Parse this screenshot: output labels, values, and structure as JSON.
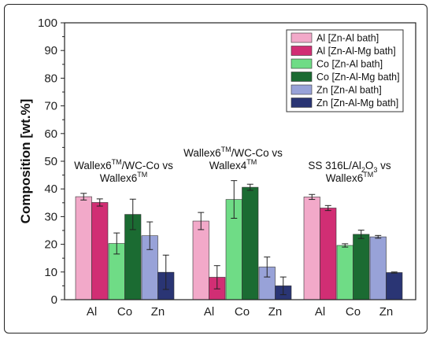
{
  "chart_data": {
    "type": "bar",
    "ylabel": "Composition [wt.%]",
    "xlabel": "",
    "ylim": [
      0,
      100
    ],
    "yticks": [
      0,
      10,
      20,
      30,
      40,
      50,
      60,
      70,
      80,
      90,
      100
    ],
    "grid": false,
    "legend_position": "top-right",
    "groups": [
      {
        "annotation": {
          "line1": [
            "Wallex6",
            "TM",
            "/WC-Co vs"
          ],
          "line2": [
            "Wallex6",
            "TM",
            ""
          ]
        },
        "categories": [
          "Al",
          "Co",
          "Zn"
        ],
        "values": [
          [
            37.2,
            35.1
          ],
          [
            20.3,
            30.8
          ],
          [
            23.1,
            9.9
          ]
        ],
        "errors": [
          [
            1.2,
            1.3
          ],
          [
            3.8,
            5.5
          ],
          [
            5.0,
            6.2
          ]
        ]
      },
      {
        "annotation": {
          "line1": [
            "Wallex6",
            "TM",
            "/WC-Co vs"
          ],
          "line2": [
            "Wallex4",
            "TM",
            ""
          ]
        },
        "categories": [
          "Al",
          "Co",
          "Zn"
        ],
        "values": [
          [
            28.4,
            8.1
          ],
          [
            36.2,
            40.6
          ],
          [
            11.8,
            5.0
          ]
        ],
        "errors": [
          [
            3.1,
            4.2
          ],
          [
            6.8,
            1.1
          ],
          [
            3.6,
            3.2
          ]
        ]
      },
      {
        "annotation": {
          "line1": [
            "SS 316L/Al",
            "2",
            "O",
            "3",
            " vs"
          ],
          "line2": [
            "Wallex6",
            "TM",
            ""
          ]
        },
        "categories": [
          "Al",
          "Co",
          "Zn"
        ],
        "values": [
          [
            37.1,
            33.1
          ],
          [
            19.6,
            23.6
          ],
          [
            22.7,
            9.8
          ]
        ],
        "errors": [
          [
            0.9,
            0.9
          ],
          [
            0.6,
            1.5
          ],
          [
            0.5,
            0.2
          ]
        ]
      }
    ],
    "series": [
      {
        "name": "Al [Zn-Al bath]",
        "color": "#f2a9c9"
      },
      {
        "name": "Al [Zn-Al-Mg bath]",
        "color": "#d12e74"
      },
      {
        "name": "Co [Zn-Al bath]",
        "color": "#6fdc86"
      },
      {
        "name": "Co [Zn-Al-Mg bath]",
        "color": "#1b6b32"
      },
      {
        "name": "Zn [Zn-Al bath]",
        "color": "#98a2d8"
      },
      {
        "name": "Zn [Zn-Al-Mg bath]",
        "color": "#2a3574"
      }
    ]
  }
}
